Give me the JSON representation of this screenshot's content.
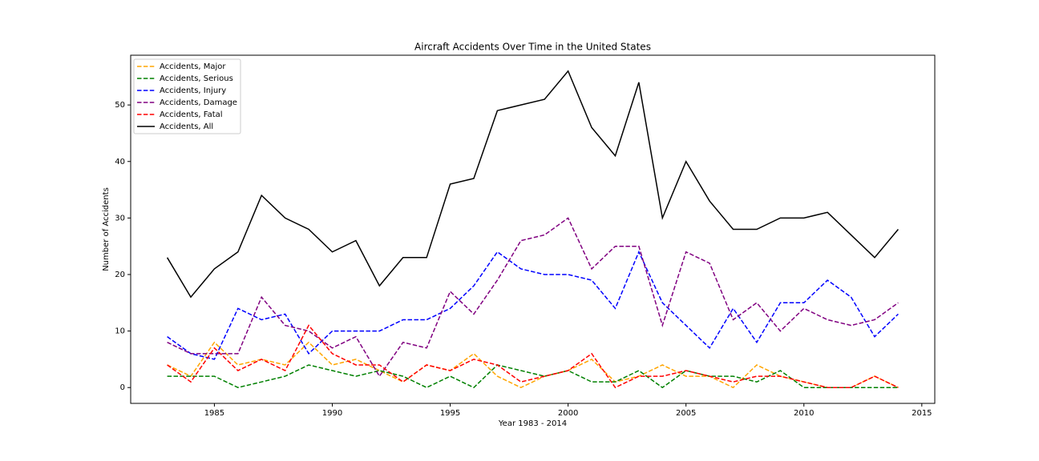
{
  "chart_data": {
    "type": "line",
    "title": "Aircraft Accidents Over Time in the United States",
    "x_label": "Year 1983 - 2014",
    "y_label": "Number of Accidents",
    "x": [
      1983,
      1984,
      1985,
      1986,
      1987,
      1988,
      1989,
      1990,
      1991,
      1992,
      1993,
      1994,
      1995,
      1996,
      1997,
      1998,
      1999,
      2000,
      2001,
      2002,
      2003,
      2004,
      2005,
      2006,
      2007,
      2008,
      2009,
      2010,
      2011,
      2012,
      2013,
      2014
    ],
    "series": [
      {
        "name": "Accidents, Major",
        "color": "orange",
        "linestyle": "dashed",
        "values": [
          4,
          2,
          8,
          4,
          5,
          4,
          8,
          4,
          5,
          3,
          1,
          4,
          3,
          6,
          2,
          0,
          2,
          3,
          5,
          1,
          2,
          4,
          2,
          2,
          0,
          4,
          2,
          1,
          0,
          0,
          2,
          0
        ]
      },
      {
        "name": "Accidents, Serious",
        "color": "green",
        "linestyle": "dashed",
        "values": [
          2,
          2,
          2,
          0,
          1,
          2,
          4,
          3,
          2,
          3,
          2,
          0,
          2,
          0,
          4,
          3,
          2,
          3,
          1,
          1,
          3,
          0,
          3,
          2,
          2,
          1,
          3,
          0,
          0,
          0,
          0,
          0
        ]
      },
      {
        "name": "Accidents, Injury",
        "color": "blue",
        "linestyle": "dashed",
        "values": [
          9,
          6,
          5,
          14,
          12,
          13,
          6,
          10,
          10,
          10,
          12,
          12,
          14,
          18,
          24,
          21,
          20,
          20,
          19,
          14,
          24,
          15,
          11,
          7,
          14,
          8,
          15,
          15,
          19,
          16,
          9,
          13
        ]
      },
      {
        "name": "Accidents, Damage",
        "color": "purple",
        "linestyle": "dashed",
        "values": [
          8,
          6,
          6,
          6,
          16,
          11,
          10,
          7,
          9,
          2,
          8,
          7,
          17,
          13,
          19,
          26,
          27,
          30,
          21,
          25,
          25,
          11,
          24,
          22,
          12,
          15,
          10,
          14,
          12,
          11,
          12,
          15
        ]
      },
      {
        "name": "Accidents, Fatal",
        "color": "red",
        "linestyle": "dashed",
        "values": [
          4,
          1,
          7,
          3,
          5,
          3,
          11,
          6,
          4,
          4,
          1,
          4,
          3,
          5,
          4,
          1,
          2,
          3,
          6,
          0,
          2,
          2,
          3,
          2,
          1,
          2,
          2,
          1,
          0,
          0,
          2,
          0
        ]
      },
      {
        "name": "Accidents, All",
        "color": "black",
        "linestyle": "solid",
        "values": [
          23,
          16,
          21,
          24,
          34,
          30,
          28,
          24,
          26,
          18,
          23,
          23,
          36,
          37,
          49,
          50,
          51,
          56,
          46,
          41,
          54,
          30,
          40,
          33,
          28,
          28,
          30,
          30,
          31,
          27,
          23,
          28
        ]
      }
    ],
    "xlim": [
      1981.45,
      2015.55
    ],
    "ylim": [
      -2.8,
      58.8
    ],
    "xticks": [
      1985,
      1990,
      1995,
      2000,
      2005,
      2010,
      2015
    ],
    "yticks": [
      0,
      10,
      20,
      30,
      40,
      50
    ],
    "legend": "upper left",
    "grid": false
  }
}
